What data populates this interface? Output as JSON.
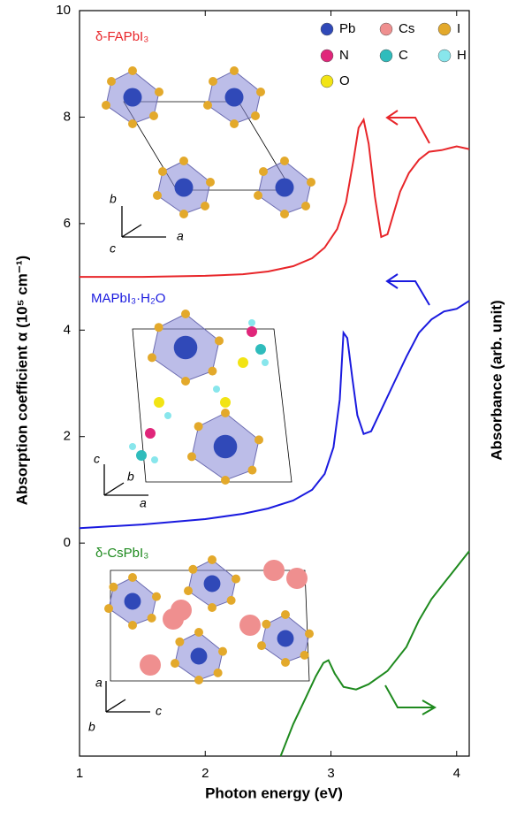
{
  "chart_data": {
    "type": "line",
    "xlabel": "Photon energy (eV)",
    "ylabel": "Absorption coefficient α (10⁵ cm⁻¹)",
    "y2label": "Absorbance (arb. unit)",
    "xlim": [
      1,
      4.1
    ],
    "xticks": [
      1,
      2,
      3,
      4
    ],
    "ylim": [
      -4,
      10
    ],
    "yticks": [
      0,
      2,
      4,
      6,
      8,
      10
    ],
    "series": [
      {
        "name": "δ-FAPbI₃",
        "color": "#e8262a",
        "x": [
          1,
          1.5,
          2,
          2.3,
          2.5,
          2.7,
          2.85,
          2.95,
          3.05,
          3.12,
          3.18,
          3.22,
          3.26,
          3.3,
          3.35,
          3.4,
          3.45,
          3.5,
          3.55,
          3.62,
          3.7,
          3.78,
          3.88,
          4.0,
          4.1
        ],
        "values": [
          5.0,
          5.0,
          5.02,
          5.05,
          5.1,
          5.2,
          5.35,
          5.55,
          5.9,
          6.4,
          7.2,
          7.8,
          7.95,
          7.5,
          6.5,
          5.75,
          5.8,
          6.2,
          6.6,
          6.95,
          7.2,
          7.35,
          7.38,
          7.45,
          7.4
        ]
      },
      {
        "name": "MAPbI₃·H₂O",
        "color": "#1a1adf",
        "x": [
          1,
          1.5,
          2,
          2.3,
          2.5,
          2.7,
          2.85,
          2.95,
          3.02,
          3.07,
          3.1,
          3.13,
          3.17,
          3.21,
          3.26,
          3.32,
          3.4,
          3.5,
          3.6,
          3.7,
          3.8,
          3.9,
          4.0,
          4.1
        ],
        "values": [
          0.28,
          0.35,
          0.45,
          0.55,
          0.65,
          0.8,
          1.0,
          1.3,
          1.8,
          2.7,
          3.95,
          3.85,
          3.1,
          2.4,
          2.05,
          2.1,
          2.5,
          3.0,
          3.5,
          3.95,
          4.2,
          4.35,
          4.4,
          4.55
        ],
        "label_color": "#1a1adf"
      },
      {
        "name": "δ-CsPbI₃",
        "color": "#1e8a1e",
        "x": [
          2.6,
          2.7,
          2.8,
          2.88,
          2.94,
          2.98,
          3.03,
          3.1,
          3.2,
          3.3,
          3.45,
          3.6,
          3.7,
          3.8,
          3.9,
          4.0,
          4.1
        ],
        "values": [
          -4,
          -3.4,
          -2.9,
          -2.5,
          -2.25,
          -2.2,
          -2.45,
          -2.7,
          -2.75,
          -2.65,
          -2.4,
          -1.95,
          -1.45,
          -1.05,
          -0.75,
          -0.45,
          -0.15
        ]
      }
    ],
    "atom_legend": [
      {
        "name": "Pb",
        "color": "#3049b8"
      },
      {
        "name": "Cs",
        "color": "#ef8f8f"
      },
      {
        "name": "I",
        "color": "#e3a92b"
      },
      {
        "name": "N",
        "color": "#e0267a"
      },
      {
        "name": "C",
        "color": "#2fbcbc"
      },
      {
        "name": "H",
        "color": "#88e6ec"
      },
      {
        "name": "O",
        "color": "#f2e414"
      }
    ],
    "crystal_axes": [
      [
        "b",
        "c",
        "a"
      ],
      [
        "c",
        "b",
        "a"
      ],
      [
        "a",
        "b",
        "c"
      ]
    ]
  }
}
